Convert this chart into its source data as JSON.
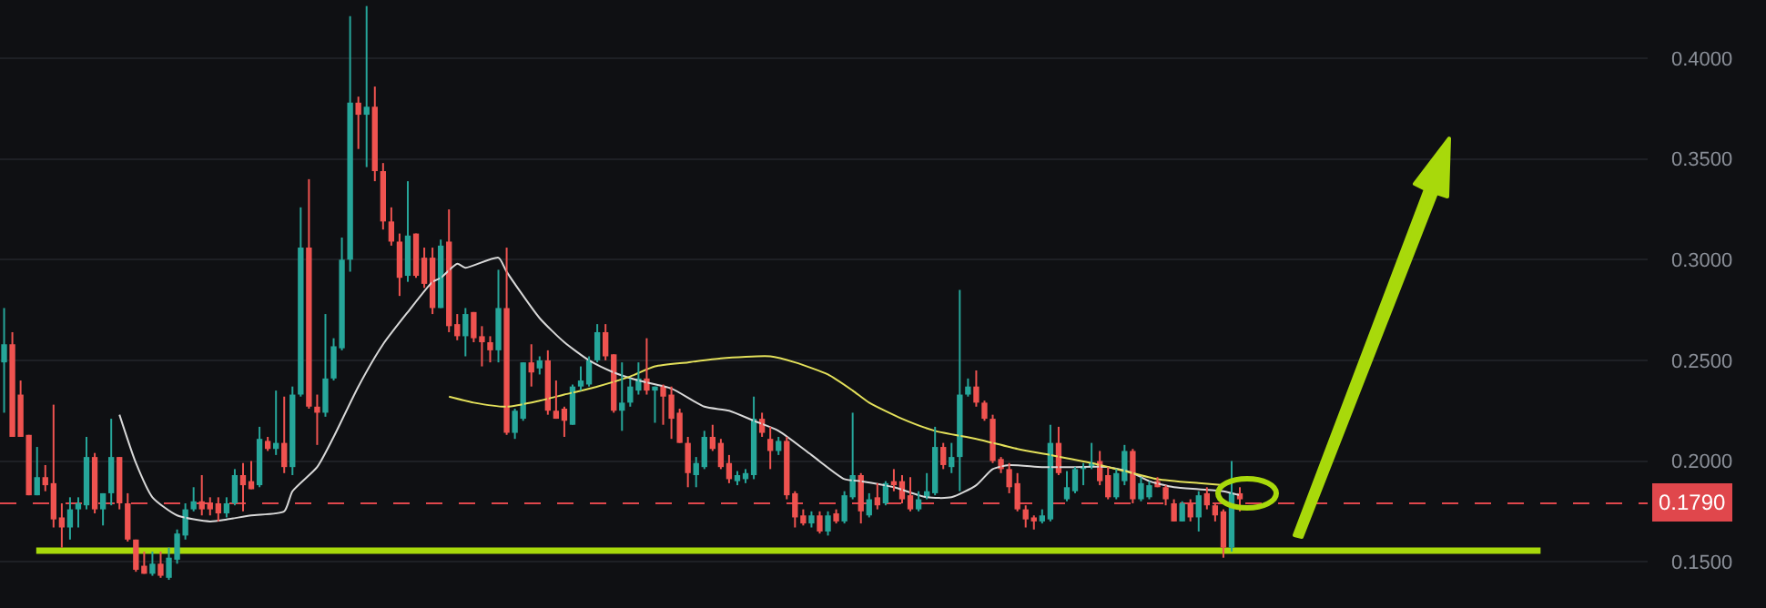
{
  "chart_data": {
    "type": "candlestick",
    "categories": [
      null,
      null,
      null,
      null,
      null,
      null,
      null,
      null,
      null,
      null,
      null,
      null,
      null,
      null,
      null,
      null,
      null,
      null,
      null,
      null,
      null,
      null,
      null,
      null,
      null,
      null,
      null,
      null,
      null,
      null,
      null,
      null,
      null,
      null,
      null,
      null,
      null,
      null,
      null,
      null,
      null,
      null,
      null,
      null,
      null,
      null,
      null,
      null,
      null,
      null,
      null,
      null,
      null,
      null,
      null,
      null,
      null,
      null,
      null,
      null,
      null,
      null,
      null,
      null,
      null,
      null,
      null,
      null,
      null,
      null,
      null,
      null,
      null,
      null,
      null,
      null,
      null,
      null,
      null,
      null,
      null,
      null,
      null,
      null,
      null,
      null,
      null,
      null,
      null,
      null,
      null,
      null,
      null,
      null,
      null,
      null,
      null,
      null,
      null,
      null,
      null,
      null,
      null,
      null,
      null,
      null,
      null,
      null,
      null,
      null,
      null,
      null,
      null,
      null,
      null,
      null,
      null,
      null,
      null,
      null,
      null,
      null,
      null,
      null,
      null,
      null,
      null,
      null,
      null,
      null,
      null,
      null,
      null,
      null,
      null,
      null,
      null,
      null,
      null,
      null,
      null,
      null,
      null,
      null,
      null,
      null,
      null,
      null,
      null,
      null,
      null,
      null,
      null,
      null,
      null,
      null,
      null,
      null,
      null,
      null,
      null,
      null,
      null,
      null,
      null,
      null,
      null,
      null,
      null,
      null,
      null,
      null,
      null,
      null,
      null,
      null,
      null,
      null,
      null,
      null,
      null,
      null,
      null,
      null,
      null,
      null,
      null,
      null,
      null,
      null,
      null,
      null,
      null,
      null,
      null,
      null,
      null,
      null,
      null,
      null
    ],
    "ohlc": [
      [
        0.249,
        0.276,
        0.224,
        0.258
      ],
      [
        0.258,
        0.264,
        0.212,
        0.212
      ],
      [
        0.233,
        0.24,
        0.212,
        0.212
      ],
      [
        0.213,
        0.213,
        0.183,
        0.183
      ],
      [
        0.183,
        0.207,
        0.183,
        0.192
      ],
      [
        0.192,
        0.198,
        0.185,
        0.188
      ],
      [
        0.189,
        0.228,
        0.167,
        0.171
      ],
      [
        0.172,
        0.179,
        0.157,
        0.167
      ],
      [
        0.167,
        0.182,
        0.161,
        0.176
      ],
      [
        0.176,
        0.182,
        0.167,
        0.179
      ],
      [
        0.178,
        0.212,
        0.176,
        0.202
      ],
      [
        0.202,
        0.204,
        0.174,
        0.176
      ],
      [
        0.176,
        0.184,
        0.168,
        0.184
      ],
      [
        0.184,
        0.221,
        0.178,
        0.202
      ],
      [
        0.202,
        0.202,
        0.176,
        0.179
      ],
      [
        0.179,
        0.184,
        0.16,
        0.161
      ],
      [
        0.161,
        0.161,
        0.145,
        0.146
      ],
      [
        0.148,
        0.155,
        0.144,
        0.144
      ],
      [
        0.144,
        0.155,
        0.143,
        0.149
      ],
      [
        0.149,
        0.155,
        0.142,
        0.143
      ],
      [
        0.142,
        0.157,
        0.141,
        0.152
      ],
      [
        0.151,
        0.166,
        0.149,
        0.164
      ],
      [
        0.163,
        0.179,
        0.161,
        0.176
      ],
      [
        0.176,
        0.187,
        0.175,
        0.18
      ],
      [
        0.18,
        0.193,
        0.173,
        0.176
      ],
      [
        0.179,
        0.182,
        0.173,
        0.176
      ],
      [
        0.179,
        0.182,
        0.17,
        0.174
      ],
      [
        0.174,
        0.182,
        0.172,
        0.179
      ],
      [
        0.179,
        0.196,
        0.178,
        0.193
      ],
      [
        0.193,
        0.199,
        0.175,
        0.188
      ],
      [
        0.19,
        0.2,
        0.186,
        0.186
      ],
      [
        0.188,
        0.217,
        0.187,
        0.211
      ],
      [
        0.21,
        0.212,
        0.205,
        0.206
      ],
      [
        0.206,
        0.235,
        0.203,
        0.209
      ],
      [
        0.209,
        0.232,
        0.194,
        0.197
      ],
      [
        0.197,
        0.237,
        0.193,
        0.233
      ],
      [
        0.233,
        0.326,
        0.232,
        0.306
      ],
      [
        0.306,
        0.34,
        0.226,
        0.227
      ],
      [
        0.227,
        0.233,
        0.208,
        0.224
      ],
      [
        0.224,
        0.273,
        0.222,
        0.241
      ],
      [
        0.241,
        0.261,
        0.24,
        0.257
      ],
      [
        0.256,
        0.311,
        0.255,
        0.3
      ],
      [
        0.3,
        0.421,
        0.294,
        0.378
      ],
      [
        0.378,
        0.381,
        0.355,
        0.372
      ],
      [
        0.372,
        0.426,
        0.346,
        0.376
      ],
      [
        0.376,
        0.386,
        0.339,
        0.344
      ],
      [
        0.344,
        0.348,
        0.315,
        0.319
      ],
      [
        0.319,
        0.326,
        0.307,
        0.309
      ],
      [
        0.309,
        0.313,
        0.282,
        0.291
      ],
      [
        0.292,
        0.339,
        0.289,
        0.312
      ],
      [
        0.313,
        0.313,
        0.291,
        0.292
      ],
      [
        0.301,
        0.306,
        0.286,
        0.288
      ],
      [
        0.301,
        0.306,
        0.273,
        0.276
      ],
      [
        0.276,
        0.31,
        0.276,
        0.307
      ],
      [
        0.309,
        0.325,
        0.264,
        0.267
      ],
      [
        0.268,
        0.273,
        0.26,
        0.262
      ],
      [
        0.262,
        0.276,
        0.252,
        0.273
      ],
      [
        0.274,
        0.274,
        0.259,
        0.261
      ],
      [
        0.262,
        0.267,
        0.247,
        0.259
      ],
      [
        0.259,
        0.262,
        0.249,
        0.255
      ],
      [
        0.255,
        0.295,
        0.249,
        0.276
      ],
      [
        0.276,
        0.306,
        0.213,
        0.214
      ],
      [
        0.214,
        0.226,
        0.211,
        0.225
      ],
      [
        0.221,
        0.249,
        0.22,
        0.249
      ],
      [
        0.249,
        0.258,
        0.237,
        0.244
      ],
      [
        0.246,
        0.252,
        0.243,
        0.25
      ],
      [
        0.25,
        0.255,
        0.223,
        0.225
      ],
      [
        0.225,
        0.24,
        0.221,
        0.221
      ],
      [
        0.226,
        0.227,
        0.212,
        0.22
      ],
      [
        0.218,
        0.238,
        0.218,
        0.237
      ],
      [
        0.237,
        0.247,
        0.235,
        0.24
      ],
      [
        0.238,
        0.252,
        0.237,
        0.25
      ],
      [
        0.25,
        0.268,
        0.249,
        0.264
      ],
      [
        0.264,
        0.268,
        0.25,
        0.252
      ],
      [
        0.253,
        0.253,
        0.224,
        0.225
      ],
      [
        0.225,
        0.249,
        0.215,
        0.229
      ],
      [
        0.229,
        0.241,
        0.227,
        0.237
      ],
      [
        0.235,
        0.249,
        0.233,
        0.241
      ],
      [
        0.241,
        0.261,
        0.233,
        0.235
      ],
      [
        0.235,
        0.237,
        0.219,
        0.237
      ],
      [
        0.237,
        0.238,
        0.218,
        0.232
      ],
      [
        0.233,
        0.237,
        0.211,
        0.221
      ],
      [
        0.224,
        0.226,
        0.209,
        0.209
      ],
      [
        0.209,
        0.212,
        0.187,
        0.194
      ],
      [
        0.193,
        0.202,
        0.187,
        0.199
      ],
      [
        0.197,
        0.215,
        0.196,
        0.212
      ],
      [
        0.212,
        0.218,
        0.205,
        0.206
      ],
      [
        0.209,
        0.211,
        0.196,
        0.197
      ],
      [
        0.199,
        0.203,
        0.189,
        0.191
      ],
      [
        0.19,
        0.195,
        0.188,
        0.193
      ],
      [
        0.191,
        0.196,
        0.189,
        0.194
      ],
      [
        0.193,
        0.232,
        0.191,
        0.221
      ],
      [
        0.221,
        0.224,
        0.212,
        0.214
      ],
      [
        0.211,
        0.217,
        0.196,
        0.205
      ],
      [
        0.205,
        0.212,
        0.203,
        0.21
      ],
      [
        0.21,
        0.212,
        0.181,
        0.183
      ],
      [
        0.184,
        0.185,
        0.167,
        0.172
      ],
      [
        0.173,
        0.176,
        0.168,
        0.169
      ],
      [
        0.169,
        0.175,
        0.167,
        0.173
      ],
      [
        0.173,
        0.175,
        0.164,
        0.165
      ],
      [
        0.165,
        0.175,
        0.163,
        0.173
      ],
      [
        0.174,
        0.176,
        0.169,
        0.17
      ],
      [
        0.17,
        0.185,
        0.169,
        0.183
      ],
      [
        0.182,
        0.224,
        0.181,
        0.193
      ],
      [
        0.193,
        0.194,
        0.169,
        0.175
      ],
      [
        0.173,
        0.184,
        0.172,
        0.181
      ],
      [
        0.182,
        0.189,
        0.176,
        0.178
      ],
      [
        0.179,
        0.19,
        0.178,
        0.189
      ],
      [
        0.19,
        0.196,
        0.185,
        0.188
      ],
      [
        0.19,
        0.193,
        0.179,
        0.181
      ],
      [
        0.183,
        0.192,
        0.175,
        0.176
      ],
      [
        0.176,
        0.185,
        0.175,
        0.181
      ],
      [
        0.182,
        0.194,
        0.181,
        0.185
      ],
      [
        0.184,
        0.217,
        0.183,
        0.207
      ],
      [
        0.207,
        0.209,
        0.196,
        0.198
      ],
      [
        0.197,
        0.209,
        0.194,
        0.202
      ],
      [
        0.202,
        0.285,
        0.185,
        0.233
      ],
      [
        0.233,
        0.241,
        0.232,
        0.237
      ],
      [
        0.237,
        0.245,
        0.227,
        0.229
      ],
      [
        0.229,
        0.23,
        0.22,
        0.221
      ],
      [
        0.221,
        0.223,
        0.199,
        0.2
      ],
      [
        0.201,
        0.202,
        0.194,
        0.196
      ],
      [
        0.196,
        0.199,
        0.184,
        0.187
      ],
      [
        0.189,
        0.194,
        0.175,
        0.176
      ],
      [
        0.176,
        0.178,
        0.167,
        0.171
      ],
      [
        0.172,
        0.173,
        0.166,
        0.17
      ],
      [
        0.17,
        0.176,
        0.169,
        0.173
      ],
      [
        0.171,
        0.218,
        0.17,
        0.209
      ],
      [
        0.209,
        0.217,
        0.193,
        0.194
      ],
      [
        0.181,
        0.195,
        0.18,
        0.187
      ],
      [
        0.185,
        0.197,
        0.184,
        0.196
      ],
      [
        0.196,
        0.199,
        0.188,
        0.197
      ],
      [
        0.197,
        0.209,
        0.196,
        0.199
      ],
      [
        0.2,
        0.205,
        0.188,
        0.19
      ],
      [
        0.193,
        0.197,
        0.181,
        0.182
      ],
      [
        0.182,
        0.196,
        0.181,
        0.194
      ],
      [
        0.19,
        0.208,
        0.188,
        0.205
      ],
      [
        0.205,
        0.206,
        0.179,
        0.181
      ],
      [
        0.181,
        0.192,
        0.18,
        0.189
      ],
      [
        0.182,
        0.19,
        0.181,
        0.188
      ],
      [
        0.19,
        0.192,
        0.187,
        0.187
      ],
      [
        0.187,
        0.188,
        0.178,
        0.181
      ],
      [
        0.179,
        0.181,
        0.17,
        0.17
      ],
      [
        0.17,
        0.18,
        0.17,
        0.179
      ],
      [
        0.179,
        0.181,
        0.17,
        0.172
      ],
      [
        0.172,
        0.185,
        0.165,
        0.183
      ],
      [
        0.184,
        0.187,
        0.176,
        0.178
      ],
      [
        0.178,
        0.179,
        0.17,
        0.173
      ],
      [
        0.175,
        0.176,
        0.152,
        0.157
      ],
      [
        0.157,
        0.2,
        0.155,
        0.184
      ],
      [
        0.184,
        0.187,
        0.175,
        0.181
      ],
      null,
      null,
      null,
      null,
      null,
      null,
      null,
      null,
      null,
      null,
      null,
      null,
      null,
      null,
      null,
      null,
      null,
      null,
      null,
      null,
      null,
      null,
      null,
      null,
      null,
      null,
      null,
      null,
      null,
      null,
      null,
      null,
      null,
      null,
      null,
      null,
      null,
      null,
      null,
      null,
      null,
      null,
      null,
      null,
      null,
      null,
      null,
      null,
      null
    ],
    "series": [
      {
        "type": "line",
        "color": "#d8d8d8",
        "values": [
          null,
          null,
          null,
          null,
          null,
          null,
          null,
          null,
          null,
          null,
          null,
          null,
          null,
          null,
          0.223,
          null,
          0.199,
          null,
          0.182,
          null,
          null,
          0.173,
          null,
          null,
          null,
          0.17,
          null,
          0.171,
          null,
          null,
          0.173,
          null,
          null,
          null,
          0.175,
          0.185,
          null,
          null,
          0.197,
          null,
          0.212,
          null,
          null,
          0.237,
          null,
          null,
          0.258,
          null,
          null,
          0.274,
          null,
          null,
          0.289,
          0.291,
          null,
          0.298,
          0.296,
          null,
          null,
          null,
          0.301,
          0.294,
          null,
          null,
          null,
          0.271,
          null,
          null,
          0.259,
          null,
          null,
          0.25,
          null,
          null,
          0.244,
          null,
          null,
          0.24,
          null,
          null,
          null,
          0.236,
          null,
          null,
          null,
          0.227,
          null,
          null,
          0.225,
          null,
          null,
          0.22,
          null,
          null,
          0.215,
          null,
          null,
          null,
          0.203,
          null,
          null,
          null,
          0.191,
          null,
          0.19,
          null,
          null,
          null,
          0.187,
          null,
          null,
          null,
          0.182,
          null,
          null,
          0.182,
          null,
          null,
          0.188,
          null,
          0.196,
          null,
          0.198,
          null,
          null,
          null,
          0.197,
          null,
          null,
          null,
          0.197,
          null,
          null,
          null,
          0.197,
          null,
          null,
          0.194,
          null,
          0.19,
          null,
          null,
          0.187,
          null,
          null,
          0.186,
          null,
          null,
          0.185,
          null,
          0.183,
          null,
          null,
          null,
          null,
          null,
          null,
          null,
          null,
          null,
          null,
          null,
          null,
          null,
          null,
          null,
          null,
          null,
          null,
          null,
          null,
          null,
          null,
          null,
          null,
          null,
          null,
          null,
          null,
          null,
          null,
          null,
          null,
          null,
          null,
          null,
          null,
          null,
          null,
          null,
          null,
          null,
          null,
          null,
          null,
          null,
          null,
          null,
          null,
          null
        ]
      },
      {
        "type": "line",
        "color": "#e3e05a",
        "values": [
          null,
          null,
          null,
          null,
          null,
          null,
          null,
          null,
          null,
          null,
          null,
          null,
          null,
          null,
          null,
          null,
          null,
          null,
          null,
          null,
          null,
          null,
          null,
          null,
          null,
          null,
          null,
          null,
          null,
          null,
          null,
          null,
          null,
          null,
          null,
          null,
          null,
          null,
          null,
          null,
          null,
          null,
          null,
          null,
          null,
          null,
          null,
          null,
          null,
          null,
          null,
          null,
          null,
          null,
          0.232,
          null,
          null,
          0.229,
          null,
          null,
          null,
          0.227,
          null,
          null,
          null,
          0.23,
          null,
          null,
          0.233,
          null,
          null,
          null,
          0.237,
          null,
          null,
          null,
          0.242,
          null,
          null,
          0.247,
          null,
          null,
          null,
          0.249,
          null,
          null,
          null,
          0.251,
          null,
          null,
          null,
          null,
          null,
          0.252,
          null,
          null,
          0.249,
          null,
          null,
          null,
          0.243,
          null,
          null,
          0.235,
          null,
          0.229,
          null,
          null,
          null,
          0.221,
          null,
          null,
          null,
          0.215,
          null,
          null,
          null,
          null,
          0.211,
          null,
          null,
          null,
          null,
          0.206,
          null,
          null,
          null,
          0.203,
          null,
          null,
          null,
          null,
          0.199,
          null,
          null,
          null,
          0.195,
          null,
          null,
          null,
          0.191,
          null,
          null,
          null,
          null,
          0.189,
          null,
          null,
          0.188,
          null,
          null,
          null,
          null,
          null,
          null,
          null,
          null,
          null,
          null,
          null,
          null,
          null,
          null,
          null,
          null,
          null,
          null,
          null,
          null,
          null,
          null,
          null,
          null,
          null,
          null,
          null,
          null,
          null,
          null,
          null,
          null,
          null,
          null,
          null,
          null,
          null,
          null,
          null,
          null,
          null,
          null,
          null,
          null,
          null,
          null,
          null,
          null,
          null,
          null,
          null
        ]
      }
    ],
    "ylim": [
      0.127,
      0.429
    ],
    "yticks": [
      {
        "value": 0.15,
        "label": "0.1500"
      },
      {
        "value": 0.2,
        "label": "0.2000"
      },
      {
        "value": 0.25,
        "label": "0.2500"
      },
      {
        "value": 0.3,
        "label": "0.3000"
      },
      {
        "value": 0.35,
        "label": "0.3500"
      },
      {
        "value": 0.4,
        "label": "0.4000"
      }
    ],
    "ref_lines": [
      {
        "axis": "y",
        "value": 0.179,
        "label": "0.1790",
        "color": "#e0474c",
        "line_style": "dashed"
      },
      {
        "axis": "y",
        "value": 0.1555,
        "color": "#a8d90b",
        "line_style": "solid"
      }
    ],
    "grid": "y",
    "tick_labels": "y"
  }
}
